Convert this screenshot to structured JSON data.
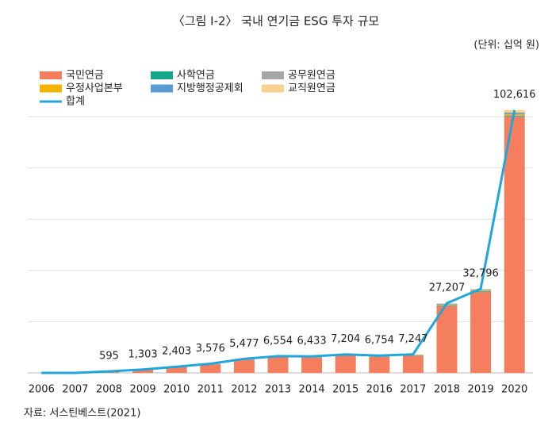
{
  "chart_data": {
    "type": "bar",
    "stacked": true,
    "title": "〈그림 Ⅰ-2〉 국내 연기금 ESG 투자 규모",
    "unit": "(단위: 십억 원)",
    "source": "자료: 서스틴베스트(2021)",
    "categories": [
      "2006",
      "2007",
      "2008",
      "2009",
      "2010",
      "2011",
      "2012",
      "2013",
      "2014",
      "2015",
      "2016",
      "2017",
      "2018",
      "2019",
      "2020"
    ],
    "series": [
      {
        "name": "국민연금",
        "color": "#f47e5e",
        "values": [
          0,
          0,
          500,
          1150,
          2200,
          3300,
          5100,
          6100,
          6000,
          6700,
          6300,
          6700,
          26000,
          31500,
          100000
        ]
      },
      {
        "name": "사학연금",
        "color": "#17a58c",
        "values": [
          0,
          0,
          20,
          40,
          50,
          60,
          80,
          100,
          100,
          110,
          100,
          110,
          200,
          250,
          300
        ]
      },
      {
        "name": "공무원연금",
        "color": "#a6a6a6",
        "values": [
          0,
          0,
          20,
          30,
          50,
          60,
          80,
          90,
          80,
          90,
          80,
          90,
          200,
          200,
          300
        ]
      },
      {
        "name": "우정사업본부",
        "color": "#f5b400",
        "values": [
          0,
          0,
          20,
          30,
          40,
          60,
          80,
          90,
          80,
          90,
          80,
          90,
          200,
          200,
          500
        ]
      },
      {
        "name": "지방행정공제회",
        "color": "#5b9bd5",
        "values": [
          0,
          0,
          20,
          30,
          40,
          60,
          80,
          90,
          80,
          100,
          90,
          100,
          300,
          300,
          500
        ]
      },
      {
        "name": "교직원연금",
        "color": "#f9cf8f",
        "values": [
          0,
          0,
          15,
          23,
          23,
          36,
          57,
          84,
          93,
          114,
          104,
          157,
          307,
          346,
          1016
        ]
      },
      {
        "name": "합계",
        "type": "line",
        "color": "#1fa7dc",
        "values": [
          0,
          0,
          595,
          1303,
          2403,
          3576,
          5477,
          6554,
          6433,
          7204,
          6754,
          7247,
          27207,
          32796,
          102616
        ],
        "value_labels": [
          null,
          null,
          "595",
          "1,303",
          "2,403",
          "3,576",
          "5,477",
          "6,554",
          "6,433",
          "7,204",
          "6,754",
          "7,247",
          "27,207",
          "32,796",
          "102,616"
        ]
      }
    ],
    "ylim": [
      0,
      105000
    ],
    "yticks": [
      0,
      20000,
      40000,
      60000,
      80000,
      100000
    ],
    "grid": true
  }
}
